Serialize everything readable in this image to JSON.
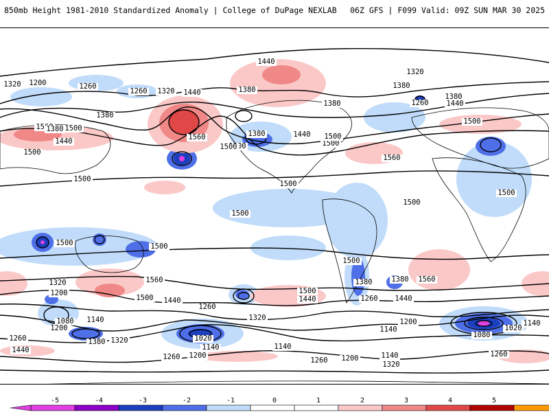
{
  "header": {
    "title_left": "850mb Height 1981-2010 Standardized Anomaly | College of DuPage NEXLAB",
    "title_right": "06Z GFS | F099 Valid: 09Z SUN MAR 30 2025"
  },
  "colors": {
    "anom_neg_5": "#e040e0",
    "anom_neg_4": "#8a00c8",
    "anom_neg_3": "#1c3fbf",
    "anom_neg_2": "#4f6fe8",
    "anom_neg_1": "#c0dcfa",
    "anom_pos_1": "#fbc8c8",
    "anom_pos_2": "#f08888",
    "anom_pos_3": "#e04848",
    "anom_pos_4": "#b00000",
    "anom_pos_5": "#ff9900",
    "contour": "#000000"
  },
  "colorbar": {
    "ticks": [
      "-5",
      "-4",
      "-3",
      "-2",
      "-1",
      "0",
      "1",
      "2",
      "3",
      "4",
      "5"
    ]
  },
  "contour_labels": [
    "1320",
    "1200",
    "1260",
    "1260",
    "1320",
    "1440",
    "1380",
    "1440",
    "1380",
    "1320",
    "1380",
    "1380",
    "1260",
    "1380",
    "1440",
    "1380",
    "1560",
    "1500",
    "1440",
    "1380",
    "1500",
    "1500",
    "1560",
    "1500",
    "1440",
    "1560",
    "1500",
    "1500",
    "1500",
    "1500",
    "1500",
    "1500",
    "1500",
    "1500",
    "1500",
    "1500",
    "1560",
    "1500",
    "1440",
    "1320",
    "1200",
    "1380",
    "1440",
    "1500",
    "1380",
    "1560",
    "1500",
    "1260",
    "1440",
    "1320",
    "1260",
    "1080",
    "1140",
    "1200",
    "1260",
    "1380",
    "1320",
    "1020",
    "1140",
    "1200",
    "1140",
    "1140",
    "1200",
    "1080",
    "1020",
    "1140",
    "1440",
    "1260",
    "1200",
    "1260",
    "1200",
    "1140",
    "1260",
    "1320"
  ]
}
